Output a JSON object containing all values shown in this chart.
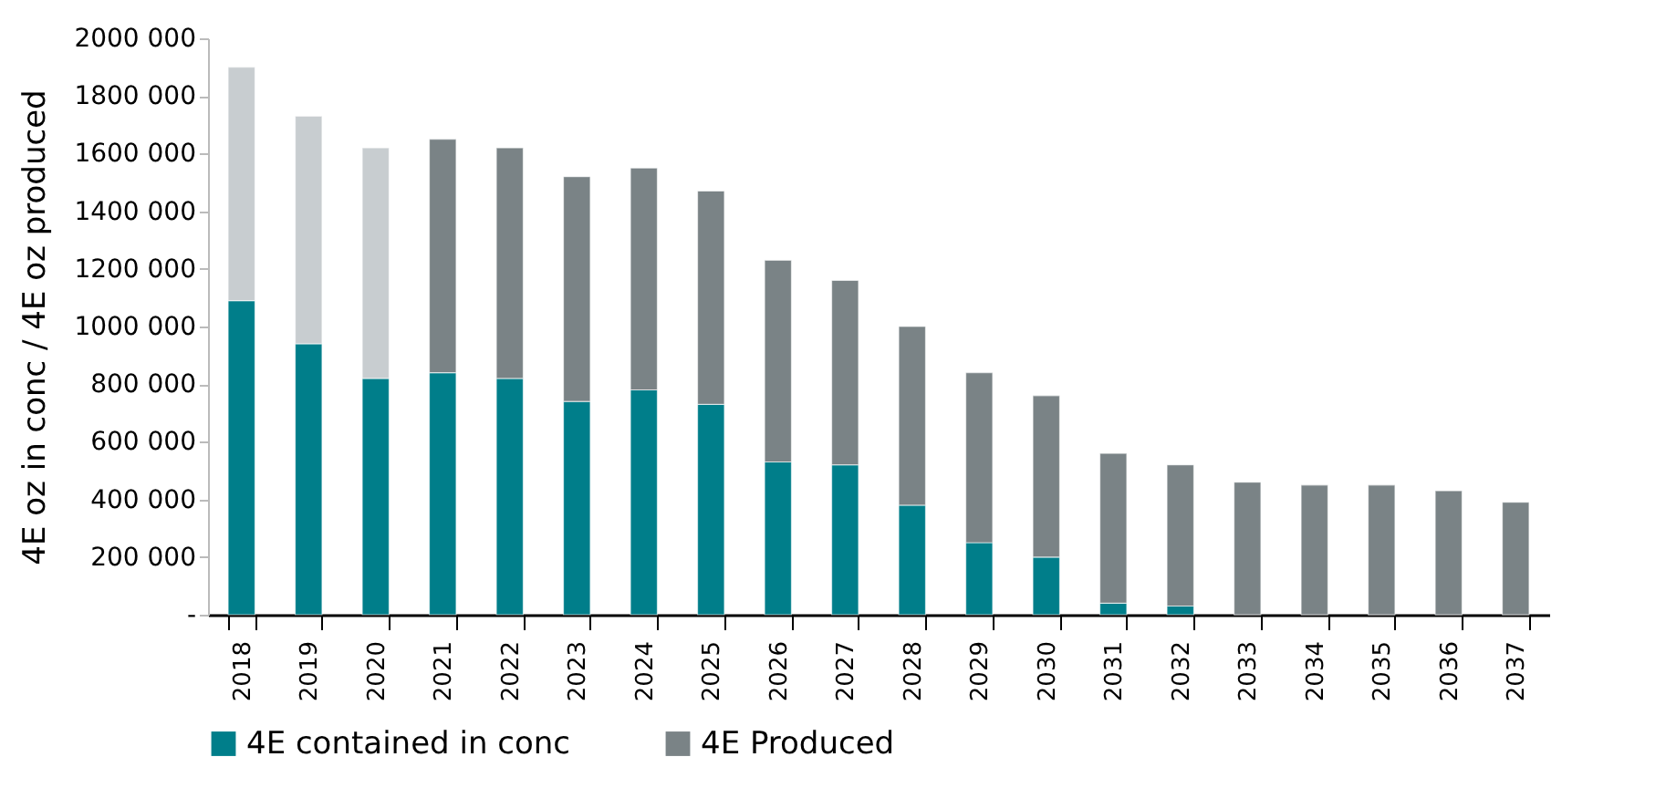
{
  "chart_data": {
    "type": "bar",
    "stacked": true,
    "ylabel": "4E oz in conc / 4E oz produced",
    "categories": [
      "2018",
      "2019",
      "2020",
      "2021",
      "2022",
      "2023",
      "2024",
      "2025",
      "2026",
      "2027",
      "2028",
      "2029",
      "2030",
      "2031",
      "2032",
      "2033",
      "2034",
      "2035",
      "2036",
      "2037"
    ],
    "series": [
      {
        "name": "4E contained in conc",
        "color": "#007e8a",
        "values": [
          1090000,
          940000,
          820000,
          840000,
          820000,
          740000,
          780000,
          730000,
          530000,
          520000,
          380000,
          250000,
          200000,
          40000,
          30000,
          0,
          0,
          0,
          0,
          0
        ]
      },
      {
        "name": "4E Produced",
        "color": "#7a8386",
        "colors": [
          "#c8cdd0",
          "#c8cdd0",
          "#c8cdd0",
          "#7a8386",
          "#7a8386",
          "#7a8386",
          "#7a8386",
          "#7a8386",
          "#7a8386",
          "#7a8386",
          "#7a8386",
          "#7a8386",
          "#7a8386",
          "#7a8386",
          "#7a8386",
          "#7a8386",
          "#7a8386",
          "#7a8386",
          "#7a8386",
          "#7a8386"
        ],
        "values": [
          810000,
          790000,
          800000,
          810000,
          800000,
          780000,
          770000,
          740000,
          700000,
          640000,
          620000,
          590000,
          560000,
          520000,
          490000,
          460000,
          450000,
          450000,
          430000,
          390000
        ]
      }
    ],
    "ylim": [
      0,
      2000000
    ],
    "yticks": [
      {
        "value": 0,
        "label": "-"
      },
      {
        "value": 200000,
        "label": "200 000"
      },
      {
        "value": 400000,
        "label": "400 000"
      },
      {
        "value": 600000,
        "label": "600 000"
      },
      {
        "value": 800000,
        "label": "800 000"
      },
      {
        "value": 1000000,
        "label": "1000 000"
      },
      {
        "value": 1200000,
        "label": "1200 000"
      },
      {
        "value": 1400000,
        "label": "1400 000"
      },
      {
        "value": 1600000,
        "label": "1600 000"
      },
      {
        "value": 1800000,
        "label": "1800 000"
      },
      {
        "value": 2000000,
        "label": "2000 000"
      }
    ],
    "grid": false,
    "legend": "bottom"
  }
}
